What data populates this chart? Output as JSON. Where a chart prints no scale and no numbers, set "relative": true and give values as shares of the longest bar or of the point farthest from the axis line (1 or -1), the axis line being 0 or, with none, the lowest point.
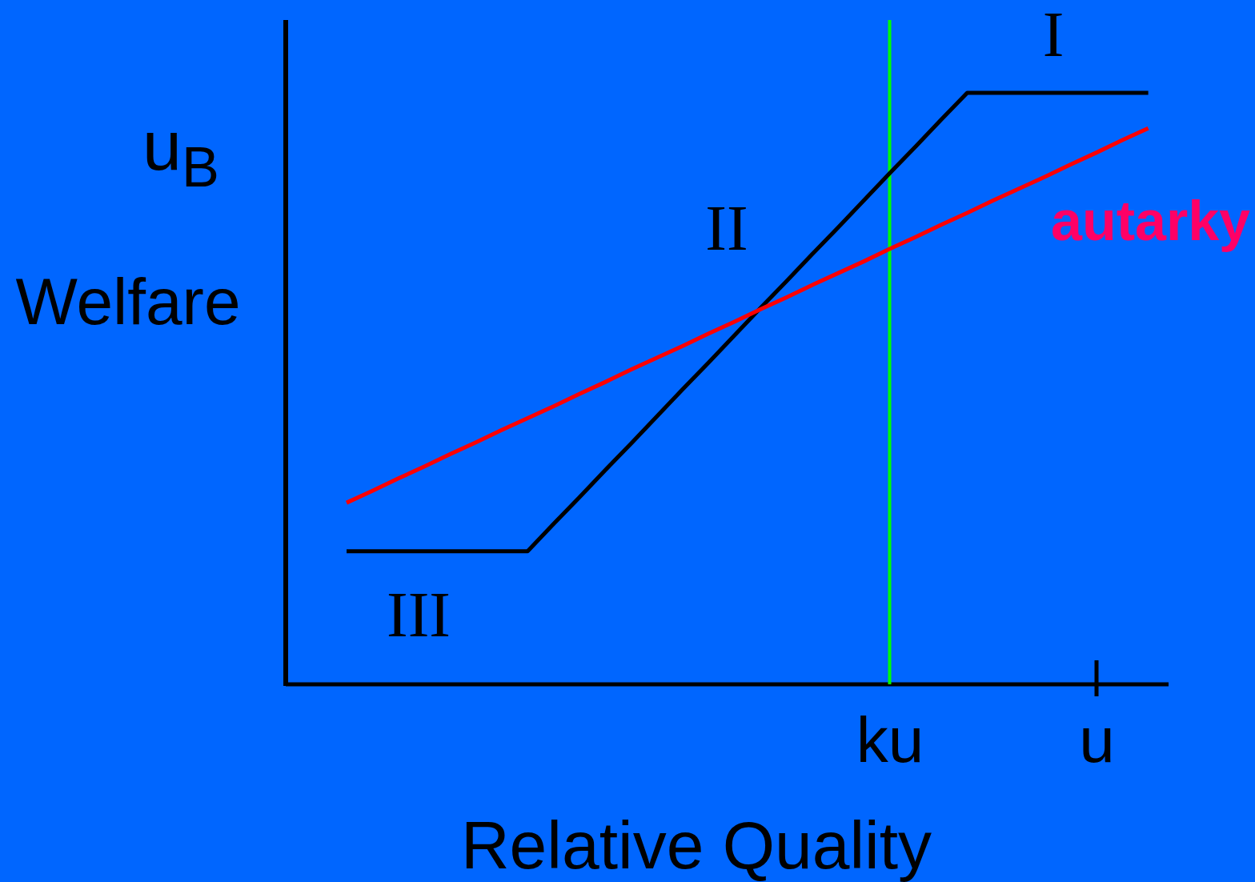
{
  "chart_data": {
    "type": "line",
    "relative": true,
    "xlabel": "Relative Quality",
    "ylabel": "Welfare",
    "categories": [
      null,
      null,
      null,
      null,
      null,
      null,
      null,
      null,
      null,
      null,
      null,
      null,
      null,
      null,
      null,
      null,
      null,
      null,
      null,
      null,
      null,
      "ku",
      null,
      null,
      null,
      null,
      null,
      null,
      null,
      "u",
      null,
      null
    ],
    "series": [
      {
        "color": "#000000",
        "values": [
          0.225,
          0.225,
          0.225,
          0.225,
          0.225,
          0.225,
          0.225,
          0.225,
          0.271,
          0.316,
          0.362,
          0.407,
          0.453,
          0.499,
          0.544,
          0.59,
          0.636,
          0.681,
          0.727,
          0.772,
          0.818,
          0.864,
          0.909,
          0.955,
          1,
          1,
          1,
          1,
          1,
          1,
          1,
          1
        ]
      },
      {
        "name": "autarky",
        "color": "#ff0000",
        "values": [
          0.307,
          0.327,
          0.348,
          0.368,
          0.389,
          0.409,
          0.43,
          0.45,
          0.47,
          0.491,
          0.511,
          0.532,
          0.552,
          0.572,
          0.593,
          0.613,
          0.634,
          0.654,
          0.675,
          0.695,
          0.715,
          0.736,
          0.756,
          0.777,
          0.797,
          0.818,
          0.838,
          0.858,
          0.879,
          0.899,
          0.92,
          0.94
        ]
      }
    ],
    "ref_lines": [
      {
        "axis": "x",
        "value": "ku",
        "label": null,
        "color": "#00ff00"
      }
    ],
    "annotations": [
      "I",
      "II",
      "III",
      "u$_{B}$"
    ],
    "grid": false,
    "legend": false,
    "marker": "none",
    "line_style": "solid"
  }
}
